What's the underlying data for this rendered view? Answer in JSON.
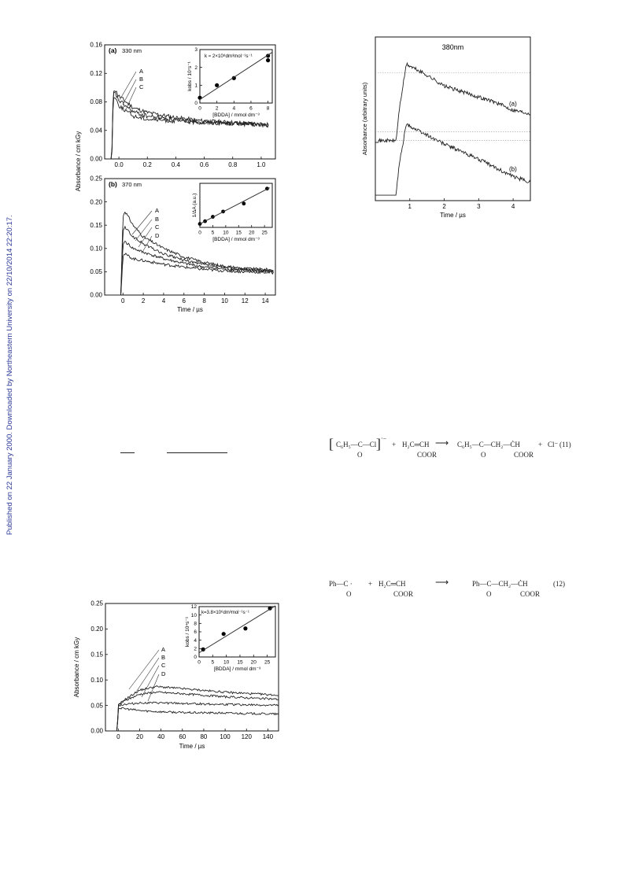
{
  "sidebar_text": "Published on 22 January 2000. Downloaded by Northeastern University on 22/10/2014 22:20:17.",
  "fig1": {
    "panel_a": {
      "label": "(a)",
      "wavelength": "330 nm",
      "ylabel": "Absorbance / cm kGy",
      "xlabel": "",
      "yticks": [
        "0.00",
        "0.04",
        "0.08",
        "0.12",
        "0.16"
      ],
      "xticks": [
        "0.0",
        "0.2",
        "0.4",
        "0.6",
        "0.8",
        "1.0"
      ],
      "curve_labels": [
        "A",
        "B",
        "C"
      ],
      "inset": {
        "rate_text": "k ≈ 2×10⁸dm³mol⁻¹s⁻¹",
        "ylabel": "kobs / 10⁷s⁻¹",
        "xlabel": "[BDDA] / mmol dm⁻³",
        "xticks": [
          "0",
          "2",
          "4",
          "6",
          "8"
        ],
        "yticks": [
          "0",
          "1",
          "2",
          "3"
        ]
      }
    },
    "panel_b": {
      "label": "(b)",
      "wavelength": "370 nm",
      "yticks": [
        "0.00",
        "0.05",
        "0.10",
        "0.15",
        "0.20",
        "0.25"
      ],
      "xticks": [
        "0",
        "2",
        "4",
        "6",
        "8",
        "10",
        "12",
        "14"
      ],
      "xlabel": "Time / µs",
      "curve_labels": [
        "A",
        "B",
        "C",
        "D"
      ],
      "inset": {
        "ylabel": "1/ΔA (a.u.)",
        "xlabel": "[BDDA] / mmol dm⁻³",
        "xticks": [
          "0",
          "5",
          "10",
          "15",
          "20",
          "25"
        ]
      }
    }
  },
  "fig2": {
    "title": "380nm",
    "ylabel": "Absorbance (arbitrary units)",
    "xlabel": "Time / µs",
    "xticks": [
      "1",
      "2",
      "3",
      "4"
    ],
    "curve_labels": [
      "(a)",
      "(b)"
    ]
  },
  "fig3": {
    "ylabel": "Absorbance / cm kGy",
    "xlabel": "Time / µs",
    "yticks": [
      "0.00",
      "0.05",
      "0.10",
      "0.15",
      "0.20",
      "0.25"
    ],
    "xticks": [
      "0",
      "20",
      "40",
      "60",
      "80",
      "100",
      "120",
      "140"
    ],
    "curve_labels": [
      "A",
      "B",
      "C",
      "D"
    ],
    "inset": {
      "rate_text": "k=3.8×10⁶dm³mol⁻¹s⁻¹",
      "ylabel": "kobs / 10⁴s⁻¹",
      "xlabel": "[BDDA] / mmol dm⁻³",
      "xticks": [
        "0",
        "5",
        "10",
        "15",
        "20",
        "25"
      ],
      "yticks": [
        "0",
        "2",
        "4",
        "6",
        "8",
        "10",
        "12"
      ]
    }
  },
  "eq11": {
    "reactant1": "C₆H₅—C—Cl",
    "reactant1_sub": "O",
    "charge": "·−",
    "plus1": "+",
    "reactant2": "H₂C═CH",
    "reactant2_sub": "COOR",
    "product": "C₆H₅—C—CH₂—ĊH",
    "product_sub1": "O",
    "product_sub2": "COOR",
    "plus2": "+",
    "byproduct": "Cl⁻",
    "number": "(11)"
  },
  "eq12": {
    "reactant1": "Ph—C ·",
    "reactant1_sub": "O",
    "plus": "+",
    "reactant2": "H₂C═CH",
    "reactant2_sub": "COOR",
    "product": "Ph—C—CH₂—ĊH",
    "product_sub1": "O",
    "product_sub2": "COOR",
    "number": "(12)"
  },
  "chart_data": [
    {
      "type": "line",
      "title": "330 nm",
      "ylabel": "Absorbance / cm kGy",
      "xlim": [
        -0.1,
        1.1
      ],
      "ylim": [
        0,
        0.16
      ],
      "series": [
        {
          "name": "A",
          "x": [
            -0.1,
            -0.05,
            -0.04,
            -0.03,
            0.0,
            0.1,
            0.2,
            0.4,
            0.6,
            0.8,
            1.05
          ],
          "y": [
            0,
            0,
            0.095,
            0.098,
            0.088,
            0.072,
            0.065,
            0.058,
            0.053,
            0.051,
            0.048
          ]
        },
        {
          "name": "B",
          "x": [
            -0.1,
            -0.05,
            -0.04,
            -0.03,
            0.0,
            0.1,
            0.2,
            0.4,
            0.6,
            0.8,
            1.05
          ],
          "y": [
            0,
            0,
            0.09,
            0.093,
            0.082,
            0.066,
            0.06,
            0.055,
            0.052,
            0.05,
            0.048
          ]
        },
        {
          "name": "C",
          "x": [
            -0.1,
            -0.05,
            -0.04,
            -0.03,
            0.0,
            0.1,
            0.2,
            0.4,
            0.6,
            0.8,
            1.05
          ],
          "y": [
            0,
            0,
            0.085,
            0.088,
            0.075,
            0.06,
            0.056,
            0.053,
            0.051,
            0.05,
            0.047
          ]
        }
      ]
    },
    {
      "type": "scatter",
      "title": "k ≈ 2×10⁸dm³mol⁻¹s⁻¹",
      "xlabel": "[BDDA] / mmol dm⁻³",
      "ylabel": "kobs / 10⁷s⁻¹",
      "xlim": [
        0,
        8.5
      ],
      "ylim": [
        0,
        3
      ],
      "x": [
        0,
        2,
        4,
        8,
        8
      ],
      "y": [
        0.3,
        1.0,
        1.4,
        2.4,
        2.65
      ]
    },
    {
      "type": "line",
      "title": "370 nm",
      "xlabel": "Time / µs",
      "ylabel": "Absorbance / cm kGy",
      "xlim": [
        -1.8,
        15
      ],
      "ylim": [
        0,
        0.25
      ],
      "series": [
        {
          "name": "A",
          "x": [
            -1.8,
            -0.2,
            0,
            0.2,
            1,
            2,
            4,
            6,
            8,
            10,
            12,
            14.8
          ],
          "y": [
            0,
            0,
            0.17,
            0.18,
            0.15,
            0.125,
            0.1,
            0.082,
            0.07,
            0.062,
            0.057,
            0.054
          ]
        },
        {
          "name": "B",
          "x": [
            -1.8,
            -0.2,
            0,
            0.2,
            1,
            2,
            4,
            6,
            8,
            10,
            12,
            14.8
          ],
          "y": [
            0,
            0,
            0.14,
            0.145,
            0.125,
            0.11,
            0.088,
            0.075,
            0.065,
            0.059,
            0.055,
            0.052
          ]
        },
        {
          "name": "C",
          "x": [
            -1.8,
            -0.2,
            0,
            0.2,
            1,
            2,
            4,
            6,
            8,
            10,
            12,
            14.8
          ],
          "y": [
            0,
            0,
            0.11,
            0.115,
            0.1,
            0.092,
            0.078,
            0.068,
            0.06,
            0.056,
            0.053,
            0.05
          ]
        },
        {
          "name": "D",
          "x": [
            -1.8,
            -0.2,
            0,
            0.2,
            1,
            2,
            4,
            6,
            8,
            10,
            12,
            14.8
          ],
          "y": [
            0,
            0,
            0.085,
            0.088,
            0.078,
            0.074,
            0.066,
            0.06,
            0.055,
            0.052,
            0.05,
            0.048
          ]
        }
      ]
    },
    {
      "type": "scatter",
      "xlabel": "[BDDA] / mmol dm⁻³",
      "ylabel": "1/ΔA (a.u.)",
      "xlim": [
        0,
        28
      ],
      "x": [
        0,
        2,
        5,
        9,
        17,
        26
      ],
      "y": [
        1.0,
        1.3,
        1.8,
        2.4,
        3.3,
        5.0
      ]
    },
    {
      "type": "line",
      "title": "380nm",
      "xlabel": "Time / µs",
      "ylabel": "Absorbance (arbitrary units)",
      "xlim": [
        0,
        4.5
      ],
      "series": [
        {
          "name": "(a)",
          "x": [
            0,
            0.6,
            0.7,
            0.9,
            1.5,
            2,
            2.5,
            3,
            3.5,
            4,
            4.5
          ],
          "y": [
            0.5,
            0.5,
            0.8,
            1.2,
            1.1,
            1.0,
            0.95,
            0.9,
            0.85,
            0.78,
            0.75
          ]
        },
        {
          "name": "(b)",
          "x": [
            0,
            0.6,
            0.7,
            0.9,
            1.5,
            2,
            2.5,
            3,
            3.5,
            4,
            4.5
          ],
          "y": [
            0,
            0,
            0.3,
            0.65,
            0.55,
            0.47,
            0.4,
            0.33,
            0.25,
            0.17,
            0.12
          ]
        }
      ]
    },
    {
      "type": "line",
      "xlabel": "Time / µs",
      "ylabel": "Absorbance / cm kGy",
      "xlim": [
        -12,
        150
      ],
      "ylim": [
        0,
        0.25
      ],
      "series": [
        {
          "name": "A",
          "x": [
            -12,
            -1,
            0,
            5,
            20,
            35,
            60,
            100,
            150
          ],
          "y": [
            0,
            0,
            0.05,
            0.06,
            0.08,
            0.087,
            0.083,
            0.076,
            0.07
          ]
        },
        {
          "name": "B",
          "x": [
            -12,
            -1,
            0,
            5,
            20,
            35,
            60,
            100,
            150
          ],
          "y": [
            0,
            0,
            0.05,
            0.058,
            0.072,
            0.076,
            0.073,
            0.067,
            0.062
          ]
        },
        {
          "name": "C",
          "x": [
            -12,
            -1,
            0,
            5,
            20,
            35,
            60,
            100,
            150
          ],
          "y": [
            0,
            0,
            0.05,
            0.052,
            0.055,
            0.055,
            0.054,
            0.052,
            0.05
          ]
        },
        {
          "name": "D",
          "x": [
            -12,
            -1,
            0,
            5,
            20,
            35,
            60,
            100,
            150
          ],
          "y": [
            0,
            0,
            0.045,
            0.044,
            0.04,
            0.038,
            0.036,
            0.035,
            0.033
          ]
        }
      ]
    },
    {
      "type": "scatter",
      "title": "k=3.8×10⁶dm³mol⁻¹s⁻¹",
      "xlabel": "[BDDA] / mmol dm⁻³",
      "ylabel": "kobs / 10⁴s⁻¹",
      "xlim": [
        0,
        28
      ],
      "ylim": [
        0,
        12
      ],
      "x": [
        1.5,
        9,
        17,
        26
      ],
      "y": [
        1.8,
        5.5,
        6.8,
        11.6
      ]
    }
  ]
}
